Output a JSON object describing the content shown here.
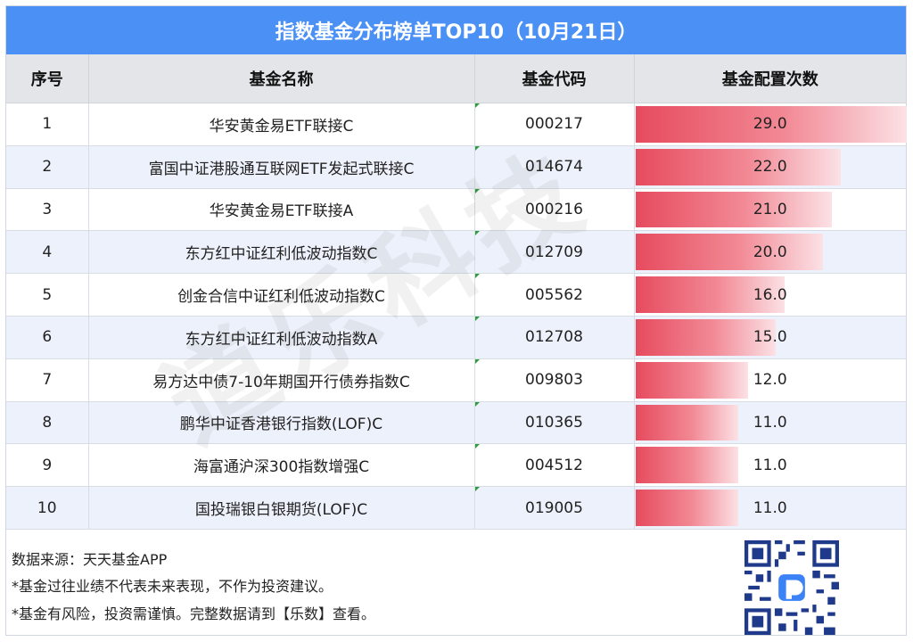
{
  "title": "指数基金分布榜单TOP10（10月21日）",
  "columns": [
    "序号",
    "基金名称",
    "基金代码",
    "基金配置次数"
  ],
  "chart_data": {
    "type": "table",
    "rows": [
      {
        "rank": "1",
        "name": "华安黄金易ETF联接C",
        "code": "000217",
        "count": 29.0,
        "count_label": "29.0"
      },
      {
        "rank": "2",
        "name": "富国中证港股通互联网ETF发起式联接C",
        "code": "014674",
        "count": 22.0,
        "count_label": "22.0"
      },
      {
        "rank": "3",
        "name": "华安黄金易ETF联接A",
        "code": "000216",
        "count": 21.0,
        "count_label": "21.0"
      },
      {
        "rank": "4",
        "name": "东方红中证红利低波动指数C",
        "code": "012709",
        "count": 20.0,
        "count_label": "20.0"
      },
      {
        "rank": "5",
        "name": "创金合信中证红利低波动指数C",
        "code": "005562",
        "count": 16.0,
        "count_label": "16.0"
      },
      {
        "rank": "6",
        "name": "东方红中证红利低波动指数A",
        "code": "012708",
        "count": 15.0,
        "count_label": "15.0"
      },
      {
        "rank": "7",
        "name": "易方达中债7-10年期国开行债券指数C",
        "code": "009803",
        "count": 12.0,
        "count_label": "12.0"
      },
      {
        "rank": "8",
        "name": "鹏华中证香港银行指数(LOF)C",
        "code": "010365",
        "count": 11.0,
        "count_label": "11.0"
      },
      {
        "rank": "9",
        "name": "海富通沪深300指数增强C",
        "code": "004512",
        "count": 11.0,
        "count_label": "11.0"
      },
      {
        "rank": "10",
        "name": "国投瑞银白银期货(LOF)C",
        "code": "019005",
        "count": 11.0,
        "count_label": "11.0"
      }
    ],
    "max": 29.0,
    "bar_colors": [
      "#e64b5e",
      "#fbe1e5"
    ]
  },
  "watermark": "道乐科技",
  "footer": {
    "source": "数据来源：天天基金APP",
    "note1": "*基金过往业绩不代表未来表现，不作为投资建议。",
    "note2": "*基金有风险，投资需谨慎。完整数据请到【乐数】查看。"
  },
  "colors": {
    "header_bg": "#4a90f5",
    "alt_row": "#edf1fb",
    "head_row": "#e3e5e9"
  }
}
